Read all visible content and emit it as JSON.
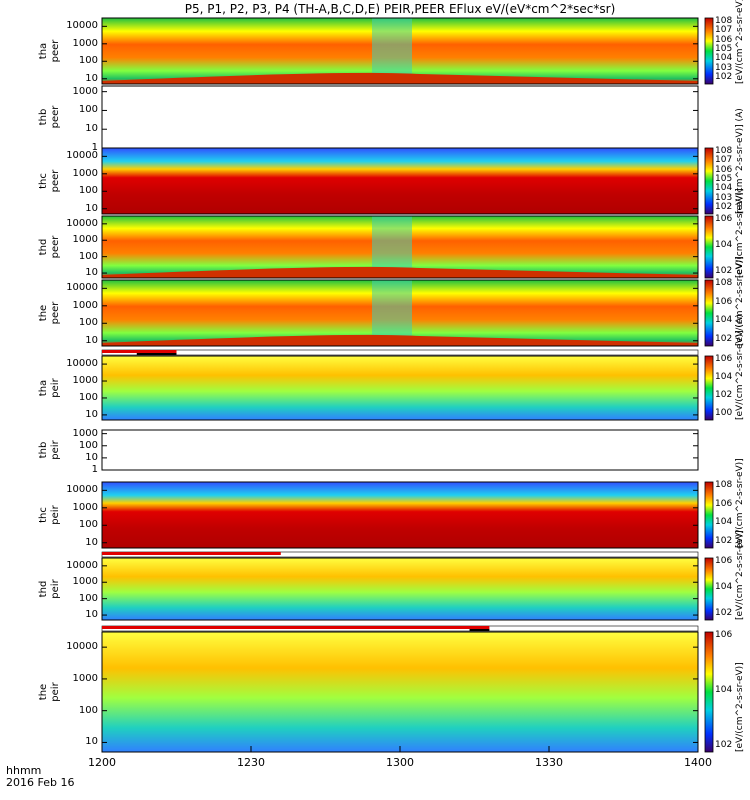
{
  "title": "P5, P1, P2, P3, P4 (TH-A,B,C,D,E) PEIR,PEER EFlux eV/(eV*cm^2*sec*sr)",
  "chart_data": {
    "type": "heatmap",
    "title": "P5, P1, P2, P3, P4 (TH-A,B,C,D,E) PEIR,PEER EFlux eV/(eV*cm^2*sec*sr)",
    "x_axis": {
      "label_top": "hhmm",
      "label_bottom": "2016 Feb 16",
      "range": [
        1200,
        1400
      ],
      "ticks": [
        "1200",
        "1230",
        "1300",
        "1330",
        "1400"
      ]
    },
    "panels": [
      {
        "id": "tha_peer",
        "name": "tha peer",
        "label1": "tha",
        "label2": "peer",
        "ylim": [
          5,
          30000
        ],
        "yticks": [
          "10",
          "100",
          "1000",
          "10000"
        ],
        "has_data": true,
        "colorbar": true,
        "colorbar_ticks": [
          "10^8",
          "10^7",
          "10^6",
          "10^5",
          "10^4",
          "10^3",
          "10^2"
        ],
        "cb_label": "[eV/(cm^2-s-sr-eV)] (A)"
      },
      {
        "id": "thb_peer",
        "name": "thb peer",
        "label1": "thb",
        "label2": "peer",
        "ylim": [
          1,
          2000
        ],
        "yticks": [
          "1",
          "10",
          "100",
          "1000"
        ],
        "has_data": false,
        "colorbar": false
      },
      {
        "id": "thc_peer",
        "name": "thc peer",
        "label1": "thc",
        "label2": "peer",
        "ylim": [
          5,
          30000
        ],
        "yticks": [
          "10",
          "100",
          "1000",
          "10000"
        ],
        "has_data": true,
        "colorbar": true,
        "colorbar_ticks": [
          "10^8",
          "10^7",
          "10^6",
          "10^5",
          "10^4",
          "10^3",
          "10^2"
        ],
        "cb_label": "[eV/(cm^2-s-sr-eV)] (A)"
      },
      {
        "id": "thd_peer",
        "name": "thd peer",
        "label1": "thd",
        "label2": "peer",
        "ylim": [
          5,
          30000
        ],
        "yticks": [
          "10",
          "100",
          "1000",
          "10000"
        ],
        "has_data": true,
        "colorbar": true,
        "colorbar_ticks": [
          "10^6",
          "10^4",
          "10^2"
        ],
        "cb_label": "[eV/(cm^2-s-sr-eV)]"
      },
      {
        "id": "the_peer",
        "name": "the peer",
        "label1": "the",
        "label2": "peer",
        "ylim": [
          5,
          30000
        ],
        "yticks": [
          "10",
          "100",
          "1000",
          "10000"
        ],
        "has_data": true,
        "colorbar": true,
        "colorbar_ticks": [
          "10^8",
          "10^6",
          "10^4",
          "10^2"
        ],
        "cb_label": "[eV/(cm^2-s-sr-eV)]"
      },
      {
        "id": "tha_peir",
        "name": "tha peir",
        "label1": "tha",
        "label2": "peir",
        "ylim": [
          5,
          30000
        ],
        "yticks": [
          "10",
          "100",
          "1000",
          "10000"
        ],
        "has_data": true,
        "colorbar": true,
        "colorbar_ticks": [
          "10^6",
          "10^4",
          "10^2",
          "10^0"
        ],
        "cb_label": "[eV/(cm^2-s-sr-eV)] (A)"
      },
      {
        "id": "thb_peir",
        "name": "thb peir",
        "label1": "thb",
        "label2": "peir",
        "ylim": [
          1,
          2000
        ],
        "yticks": [
          "1",
          "10",
          "100",
          "1000"
        ],
        "has_data": false,
        "colorbar": false
      },
      {
        "id": "thc_peir",
        "name": "thc peir",
        "label1": "thc",
        "label2": "peir",
        "ylim": [
          5,
          30000
        ],
        "yticks": [
          "10",
          "100",
          "1000",
          "10000"
        ],
        "has_data": true,
        "colorbar": true,
        "colorbar_ticks": [
          "10^8",
          "10^6",
          "10^4",
          "10^2"
        ],
        "cb_label": "[eV/(cm^2-s-sr-eV)]"
      },
      {
        "id": "thd_peir",
        "name": "thd peir",
        "label1": "thd",
        "label2": "peir",
        "ylim": [
          5,
          30000
        ],
        "yticks": [
          "10",
          "100",
          "1000",
          "10000"
        ],
        "has_data": true,
        "colorbar": true,
        "colorbar_ticks": [
          "10^6",
          "10^4",
          "10^2"
        ],
        "cb_label": "[eV/(cm^2-s-sr-eV)]"
      },
      {
        "id": "the_peir",
        "name": "the peir",
        "label1": "the",
        "label2": "peir",
        "ylim": [
          5,
          30000
        ],
        "yticks": [
          "10",
          "100",
          "1000",
          "10000"
        ],
        "has_data": true,
        "colorbar": true,
        "colorbar_ticks": [
          "10^6",
          "10^4",
          "10^2"
        ],
        "cb_label": "[eV/(cm^2-s-sr-eV)]"
      }
    ],
    "mode_bars": [
      {
        "after_panel": "the_peer",
        "red_until": 1215,
        "black_from": 1207,
        "black_until": 1215
      },
      {
        "after_panel": "thc_peir",
        "red_until": 1236
      },
      {
        "after_panel": "thd_peir",
        "red_until": 1318,
        "black_from": 1314,
        "black_until": 1318
      }
    ],
    "colors": {
      "high": "#c80000",
      "mid_high": "#ff8000",
      "mid": "#ffff00",
      "mid_low": "#00e050",
      "low": "#0040ff",
      "lowest": "#400080",
      "background": "#ffffff"
    }
  }
}
